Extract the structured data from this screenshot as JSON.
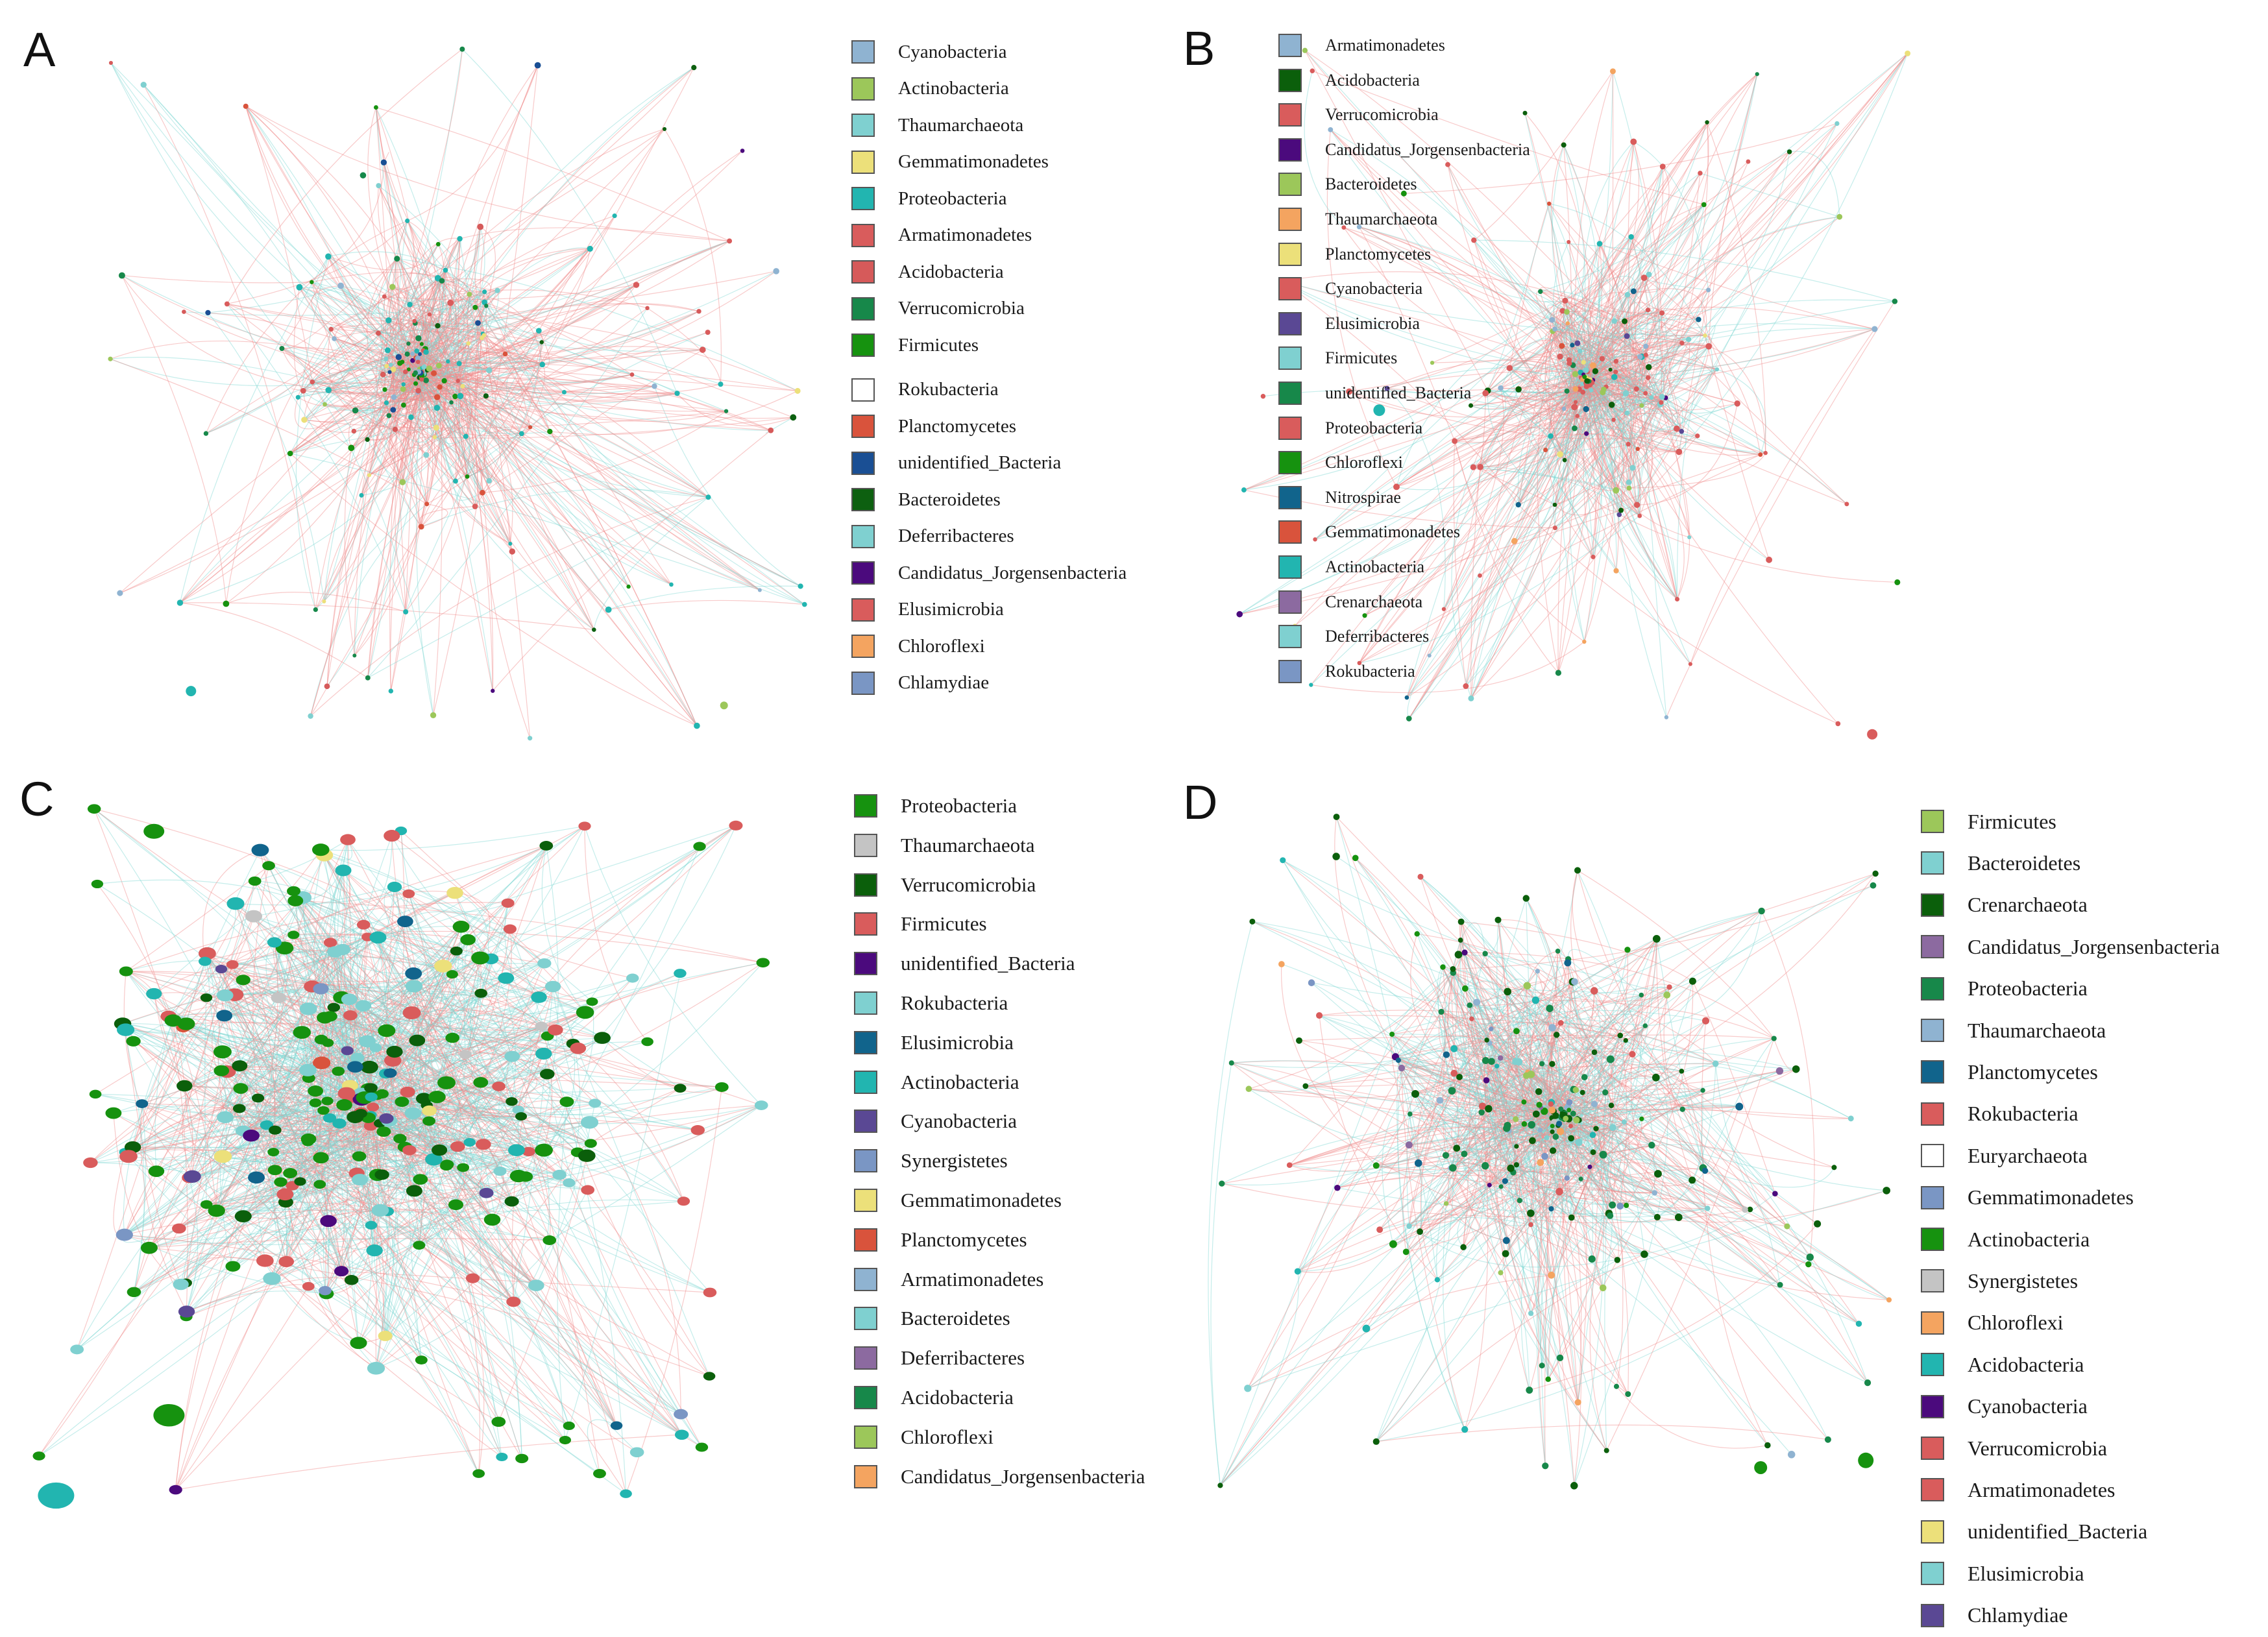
{
  "figure": {
    "panels": [
      {
        "letter": "A",
        "legend": [
          {
            "label": "Cyanobacteria",
            "color": "#8fb3d1"
          },
          {
            "label": "Actinobacteria",
            "color": "#9cc75a"
          },
          {
            "label": "Thaumarchaeota",
            "color": "#7fd0d0"
          },
          {
            "label": "Gemmatimonadetes",
            "color": "#ece07a"
          },
          {
            "label": "Proteobacteria",
            "color": "#22b5b0"
          },
          {
            "label": "Armatimonadetes",
            "color": "#d95c5c"
          },
          {
            "label": "Acidobacteria",
            "color": "#d65a5a"
          },
          {
            "label": "Verrucomicrobia",
            "color": "#17884a"
          },
          {
            "label": "Firmicutes",
            "color": "#16920f"
          },
          {
            "label": "Rokubacteria",
            "color": "#ffffff"
          },
          {
            "label": "Planctomycetes",
            "color": "#d9533c"
          },
          {
            "label": "unidentified_Bacteria",
            "color": "#1a4f94"
          },
          {
            "label": "Bacteroidetes",
            "color": "#0d6010"
          },
          {
            "label": "Deferribacteres",
            "color": "#7fd0d0"
          },
          {
            "label": "Candidatus_Jorgensenbacteria",
            "color": "#4b0a7d"
          },
          {
            "label": "Elusimicrobia",
            "color": "#d95c5c"
          },
          {
            "label": "Chloroflexi",
            "color": "#f4a460"
          },
          {
            "label": "Chlamydiae",
            "color": "#7a96c4"
          }
        ]
      },
      {
        "letter": "B",
        "legend": [
          {
            "label": "Armatimonadetes",
            "color": "#8fb3d1"
          },
          {
            "label": "Acidobacteria",
            "color": "#0b5f0b"
          },
          {
            "label": "Verrucomicrobia",
            "color": "#d95c5c"
          },
          {
            "label": "Candidatus_Jorgensenbacteria",
            "color": "#4b0a7d"
          },
          {
            "label": "Bacteroidetes",
            "color": "#9cc75a"
          },
          {
            "label": "Thaumarchaeota",
            "color": "#f4a460"
          },
          {
            "label": "Planctomycetes",
            "color": "#ece07a"
          },
          {
            "label": "Cyanobacteria",
            "color": "#d95c5c"
          },
          {
            "label": "Elusimicrobia",
            "color": "#5a4894"
          },
          {
            "label": "Firmicutes",
            "color": "#7fd0d0"
          },
          {
            "label": "unidentified_Bacteria",
            "color": "#17884a"
          },
          {
            "label": "Proteobacteria",
            "color": "#d95c5c"
          },
          {
            "label": "Chloroflexi",
            "color": "#16920f"
          },
          {
            "label": "Nitrospirae",
            "color": "#11648c"
          },
          {
            "label": "Gemmatimonadetes",
            "color": "#d9533c"
          },
          {
            "label": "Actinobacteria",
            "color": "#22b5b0"
          },
          {
            "label": "Crenarchaeota",
            "color": "#8c6aa0"
          },
          {
            "label": "Deferribacteres",
            "color": "#7fd0d0"
          },
          {
            "label": "Rokubacteria",
            "color": "#7a96c4"
          }
        ]
      },
      {
        "letter": "C",
        "legend": [
          {
            "label": "Proteobacteria",
            "color": "#16920f"
          },
          {
            "label": "Thaumarchaeota",
            "color": "#c4c4c4"
          },
          {
            "label": "Verrucomicrobia",
            "color": "#0b5f0b"
          },
          {
            "label": "Firmicutes",
            "color": "#d95c5c"
          },
          {
            "label": "unidentified_Bacteria",
            "color": "#4b0a7d"
          },
          {
            "label": "Rokubacteria",
            "color": "#7fd0d0"
          },
          {
            "label": "Elusimicrobia",
            "color": "#11648c"
          },
          {
            "label": "Actinobacteria",
            "color": "#22b5b0"
          },
          {
            "label": "Cyanobacteria",
            "color": "#5a4894"
          },
          {
            "label": "Synergistetes",
            "color": "#7a96c4"
          },
          {
            "label": "Gemmatimonadetes",
            "color": "#ece07a"
          },
          {
            "label": "Planctomycetes",
            "color": "#d9533c"
          },
          {
            "label": "Armatimonadetes",
            "color": "#8fb3d1"
          },
          {
            "label": "Bacteroidetes",
            "color": "#7fd0d0"
          },
          {
            "label": "Deferribacteres",
            "color": "#8c6aa0"
          },
          {
            "label": "Acidobacteria",
            "color": "#17884a"
          },
          {
            "label": "Chloroflexi",
            "color": "#9cc75a"
          },
          {
            "label": "Candidatus_Jorgensenbacteria",
            "color": "#f4a460"
          }
        ]
      },
      {
        "letter": "D",
        "legend": [
          {
            "label": "Firmicutes",
            "color": "#9cc75a"
          },
          {
            "label": "Bacteroidetes",
            "color": "#7fd0d0"
          },
          {
            "label": "Crenarchaeota",
            "color": "#0b5f0b"
          },
          {
            "label": "Candidatus_Jorgensenbacteria",
            "color": "#8c6aa0"
          },
          {
            "label": "Proteobacteria",
            "color": "#17884a"
          },
          {
            "label": "Thaumarchaeota",
            "color": "#8fb3d1"
          },
          {
            "label": "Planctomycetes",
            "color": "#11648c"
          },
          {
            "label": "Rokubacteria",
            "color": "#d95c5c"
          },
          {
            "label": "Euryarchaeota",
            "color": "#ffffff"
          },
          {
            "label": "Gemmatimonadetes",
            "color": "#7a96c4"
          },
          {
            "label": "Actinobacteria",
            "color": "#16920f"
          },
          {
            "label": "Synergistetes",
            "color": "#c4c4c4"
          },
          {
            "label": "Chloroflexi",
            "color": "#f4a460"
          },
          {
            "label": "Acidobacteria",
            "color": "#22b5b0"
          },
          {
            "label": "Cyanobacteria",
            "color": "#4b0a7d"
          },
          {
            "label": "Verrucomicrobia",
            "color": "#d95c5c"
          },
          {
            "label": "Armatimonadetes",
            "color": "#d95c5c"
          },
          {
            "label": "unidentified_Bacteria",
            "color": "#ece07a"
          },
          {
            "label": "Elusimicrobia",
            "color": "#7fd0d0"
          },
          {
            "label": "Chlamydiae",
            "color": "#5a4894"
          }
        ]
      }
    ]
  }
}
